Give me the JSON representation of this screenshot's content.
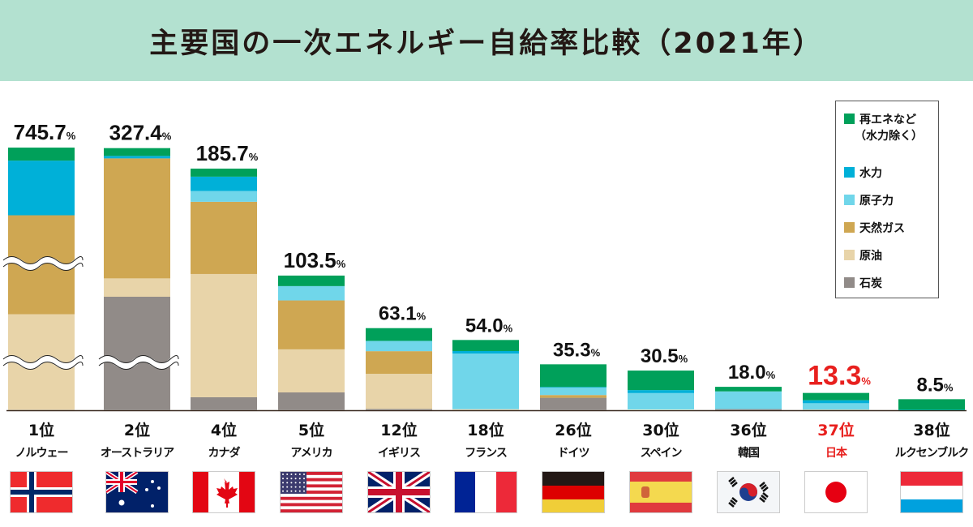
{
  "title": "主要国の一次エネルギー自給率比較（2021年）",
  "chart_data": {
    "type": "bar",
    "stacked": true,
    "title": "主要国の一次エネルギー自給率比較（2021年）",
    "unit": "%",
    "broken_axis_bars": [
      "ノルウェー",
      "オーストラリア"
    ],
    "legend_position": "top-right",
    "colors": {
      "renewables": "#00a05a",
      "hydro": "#00b0d8",
      "nuclear": "#70d6ea",
      "gas": "#cfa752",
      "oil": "#e8d4a9",
      "coal": "#918b88"
    },
    "series_keys": [
      "renewables",
      "hydro",
      "nuclear",
      "gas",
      "oil",
      "coal"
    ],
    "legend": [
      {
        "key": "renewables",
        "label": "再エネなど",
        "label2": "（水力除く）"
      },
      {
        "key": "hydro",
        "label": "水力"
      },
      {
        "key": "nuclear",
        "label": "原子力"
      },
      {
        "key": "gas",
        "label": "天然ガス"
      },
      {
        "key": "oil",
        "label": "原油"
      },
      {
        "key": "coal",
        "label": "石炭"
      }
    ],
    "categories": [
      {
        "rank": "1位",
        "name": "ノルウェー",
        "flag": "norway",
        "total": "745.7",
        "highlight": false,
        "values": {
          "renewables": 10.0,
          "hydro": 42.0,
          "nuclear": 0,
          "gas": 380.0,
          "oil": 313.4,
          "coal": 0.3
        }
      },
      {
        "rank": "2位",
        "name": "オーストラリア",
        "flag": "australia",
        "total": "327.4",
        "highlight": false,
        "values": {
          "renewables": 6.0,
          "hydro": 1.9,
          "nuclear": 0,
          "gas": 100.0,
          "oil": 14.1,
          "coal": 205.4
        }
      },
      {
        "rank": "4位",
        "name": "カナダ",
        "flag": "canada",
        "total": "185.7",
        "highlight": false,
        "values": {
          "renewables": 6.2,
          "hydro": 11.0,
          "nuclear": 8.3,
          "gas": 55.5,
          "oil": 94.7,
          "coal": 10.0
        }
      },
      {
        "rank": "5位",
        "name": "アメリカ",
        "flag": "usa",
        "total": "103.5",
        "highlight": false,
        "values": {
          "renewables": 8.1,
          "hydro": 0,
          "nuclear": 11.0,
          "gas": 37.6,
          "oil": 33.1,
          "coal": 13.7
        }
      },
      {
        "rank": "12位",
        "name": "イギリス",
        "flag": "uk",
        "total": "63.1",
        "highlight": false,
        "values": {
          "renewables": 9.8,
          "hydro": 0,
          "nuclear": 7.9,
          "gas": 17.4,
          "oil": 27.0,
          "coal": 1.0
        }
      },
      {
        "rank": "18位",
        "name": "フランス",
        "flag": "france",
        "total": "54.0",
        "highlight": false,
        "values": {
          "renewables": 8.5,
          "hydro": 1.9,
          "nuclear": 42.8,
          "gas": 0,
          "oil": 0.6,
          "coal": 0.2
        }
      },
      {
        "rank": "26位",
        "name": "ドイツ",
        "flag": "germany",
        "total": "35.3",
        "highlight": false,
        "values": {
          "renewables": 17.4,
          "hydro": 0.6,
          "nuclear": 5.6,
          "gas": 2.1,
          "oil": 0,
          "coal": 9.6
        }
      },
      {
        "rank": "30位",
        "name": "スペイン",
        "flag": "spain",
        "total": "30.5",
        "highlight": false,
        "values": {
          "renewables": 15.0,
          "hydro": 2.3,
          "nuclear": 12.7,
          "gas": 0,
          "oil": 0.5,
          "coal": 0
        }
      },
      {
        "rank": "36位",
        "name": "韓国",
        "flag": "korea",
        "total": "18.0",
        "highlight": false,
        "values": {
          "renewables": 3.5,
          "hydro": 0,
          "nuclear": 13.6,
          "gas": 0,
          "oil": 0,
          "coal": 0.9
        }
      },
      {
        "rank": "37位",
        "name": "日本",
        "flag": "japan",
        "total": "13.3",
        "highlight": true,
        "values": {
          "renewables": 5.6,
          "hydro": 2.3,
          "nuclear": 4.9,
          "gas": 0.2,
          "oil": 0.1,
          "coal": 0.2
        }
      },
      {
        "rank": "38位",
        "name": "ルクセンブルク",
        "flag": "luxembourg",
        "total": "8.5",
        "highlight": false,
        "values": {
          "renewables": 8.2,
          "hydro": 0.3,
          "nuclear": 0,
          "gas": 0,
          "oil": 0,
          "coal": 0
        }
      }
    ],
    "highlight_color": "#e8201e"
  }
}
